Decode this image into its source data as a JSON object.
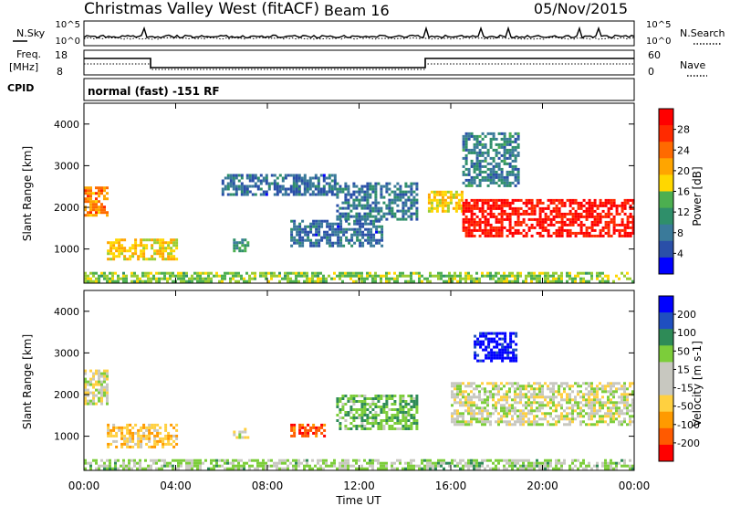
{
  "header": {
    "title": "Christmas Valley West (fitACF)",
    "beam": "Beam 16",
    "date": "05/Nov/2015"
  },
  "aux_panels": {
    "nsky_label": "N.Sky",
    "nsearch_label": "N.Search",
    "noise_ticks": [
      "10^5",
      "10^0"
    ],
    "freq_label_line1": "Freq.",
    "freq_label_line2": "[MHz]",
    "freq_ticks": [
      "18",
      "8"
    ],
    "nave_label": "Nave",
    "nave_ticks": [
      "60",
      "0"
    ],
    "cpid_label": "CPID",
    "cpid_text": "normal (fast) -151 RF"
  },
  "colors": {
    "power_scale": [
      "#0000ff",
      "#2a4fa8",
      "#3a7a9a",
      "#2f8f6a",
      "#4caf50",
      "#9acd32",
      "#ffd700",
      "#ffa500",
      "#ff6a00",
      "#ff2a00",
      "#ff0000"
    ],
    "velocity_scale": [
      "#0000ff",
      "#1f4fc0",
      "#2e8b57",
      "#7ccd3a",
      "#c8c8c0",
      "#ffd040",
      "#ff9a00",
      "#ff5a00",
      "#ff0000"
    ]
  },
  "chart_data": [
    {
      "type": "heatmap",
      "panel": "power",
      "ylabel": "Slant Range [km]",
      "ylim": [
        180,
        4500
      ],
      "yticks": [
        "4000",
        "3000",
        "2000",
        "1000"
      ],
      "xlim_hours": [
        0,
        24
      ],
      "colorbar": {
        "label": "Power [dB]",
        "ticks": [
          "28",
          "24",
          "20",
          "16",
          "12",
          "8",
          "4"
        ],
        "range": [
          0,
          30
        ]
      },
      "regions": [
        {
          "t": [
            0.0,
            1.0
          ],
          "r": [
            1800,
            2500
          ],
          "value": 22
        },
        {
          "t": [
            1.0,
            4.0
          ],
          "r": [
            750,
            1250
          ],
          "value": 18
        },
        {
          "t": [
            6.5,
            7.2
          ],
          "r": [
            950,
            1250
          ],
          "value": 10
        },
        {
          "t": [
            6.0,
            11.0
          ],
          "r": [
            2300,
            2800
          ],
          "value": 6
        },
        {
          "t": [
            11.0,
            14.5
          ],
          "r": [
            1700,
            2600
          ],
          "value": 7
        },
        {
          "t": [
            9.0,
            13.0
          ],
          "r": [
            1100,
            1700
          ],
          "value": 6
        },
        {
          "t": [
            15.0,
            16.5
          ],
          "r": [
            1900,
            2400
          ],
          "value": 18
        },
        {
          "t": [
            16.5,
            24.0
          ],
          "r": [
            1300,
            2200
          ],
          "value": 28
        },
        {
          "t": [
            16.5,
            19.0
          ],
          "r": [
            2500,
            3800
          ],
          "value": 8
        },
        {
          "t": [
            0.0,
            24.0
          ],
          "r": [
            200,
            450
          ],
          "value": 14
        }
      ]
    },
    {
      "type": "heatmap",
      "panel": "velocity",
      "ylabel": "Slant Range [km]",
      "ylim": [
        180,
        4500
      ],
      "yticks": [
        "4000",
        "3000",
        "2000",
        "1000"
      ],
      "xlim_hours": [
        0,
        24
      ],
      "xticks": [
        "00:00",
        "04:00",
        "08:00",
        "12:00",
        "16:00",
        "20:00",
        "00:00"
      ],
      "xlabel": "Time UT",
      "colorbar": {
        "label": "Velocity [m s-1]",
        "ticks": [
          "200",
          "100",
          "50",
          "15",
          "-15",
          "-50",
          "-100",
          "-200"
        ],
        "range": [
          -250,
          250
        ]
      },
      "regions": [
        {
          "t": [
            0.0,
            1.0
          ],
          "r": [
            1800,
            2600
          ],
          "value": 0
        },
        {
          "t": [
            1.0,
            4.0
          ],
          "r": [
            750,
            1300
          ],
          "value": -60
        },
        {
          "t": [
            6.5,
            7.2
          ],
          "r": [
            950,
            1200
          ],
          "value": 0
        },
        {
          "t": [
            9.0,
            10.5
          ],
          "r": [
            1000,
            1300
          ],
          "value": -180
        },
        {
          "t": [
            11.0,
            14.5
          ],
          "r": [
            1200,
            2000
          ],
          "value": 70
        },
        {
          "t": [
            16.0,
            24.0
          ],
          "r": [
            1300,
            2300
          ],
          "value": 0
        },
        {
          "t": [
            17.0,
            18.8
          ],
          "r": [
            2800,
            3500
          ],
          "value": 230
        },
        {
          "t": [
            0.0,
            24.0
          ],
          "r": [
            200,
            450
          ],
          "value": 40
        }
      ]
    }
  ]
}
